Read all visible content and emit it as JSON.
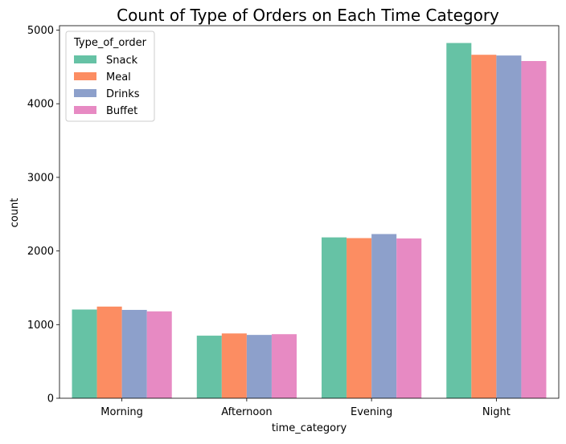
{
  "chart_data": {
    "type": "bar",
    "title": "Count of Type of Orders on Each Time Category",
    "xlabel": "time_category",
    "ylabel": "count",
    "categories": [
      "Morning",
      "Afternoon",
      "Evening",
      "Night"
    ],
    "ylim": [
      0,
      5060
    ],
    "yticks": [
      0,
      1000,
      2000,
      3000,
      4000,
      5000
    ],
    "grid": false,
    "legend": {
      "title": "Type_of_order",
      "position": "top-left"
    },
    "series": [
      {
        "name": "Snack",
        "color": "#66c2a5",
        "values": [
          1205,
          850,
          2185,
          4825
        ]
      },
      {
        "name": "Meal",
        "color": "#fc8d62",
        "values": [
          1245,
          880,
          2175,
          4665
        ]
      },
      {
        "name": "Drinks",
        "color": "#8da0cb",
        "values": [
          1200,
          860,
          2230,
          4655
        ]
      },
      {
        "name": "Buffet",
        "color": "#e78ac3",
        "values": [
          1180,
          870,
          2170,
          4580
        ]
      }
    ]
  }
}
